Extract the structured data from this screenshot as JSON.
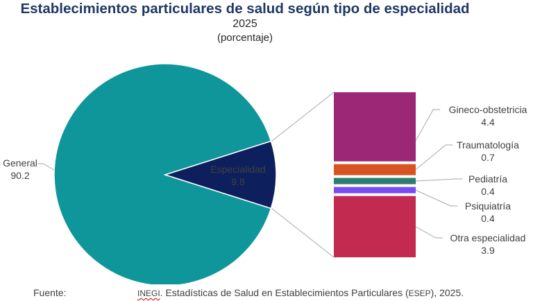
{
  "header": {
    "title": "Establecimientos particulares de salud según tipo de especialidad",
    "year": "2025",
    "unit": "(porcentaje)"
  },
  "chart_data": [
    {
      "type": "pie",
      "slices": [
        {
          "label": "General",
          "value": 90.2,
          "value_label": "90.2",
          "color": "#0f969b"
        },
        {
          "label": "Especialidad",
          "value": 9.8,
          "value_label": "9.8",
          "color": "#0d1f5c"
        }
      ]
    },
    {
      "type": "bar",
      "stacked": true,
      "detail_of": "Especialidad",
      "series": [
        {
          "name": "Gineco-obstetricia",
          "value": 4.4,
          "value_label": "4.4",
          "color": "#9c2777"
        },
        {
          "name": "Traumatología",
          "value": 0.7,
          "value_label": "0.7",
          "color": "#d95320"
        },
        {
          "name": "Pediatría",
          "value": 0.4,
          "value_label": "0.4",
          "color": "#2d7d6e"
        },
        {
          "name": "Psiquiatría",
          "value": 0.4,
          "value_label": "0.4",
          "color": "#7a4cf0"
        },
        {
          "name": "Otra especialidad",
          "value": 3.9,
          "value_label": "3.9",
          "color": "#c22a50"
        }
      ]
    }
  ],
  "footer": {
    "source_label": "Fuente:",
    "source_org": "INEGI",
    "source_text": ". Estadísticas de Salud en Establecimientos Particulares (",
    "source_abbr": "ESEP",
    "source_end": "), 2025."
  }
}
